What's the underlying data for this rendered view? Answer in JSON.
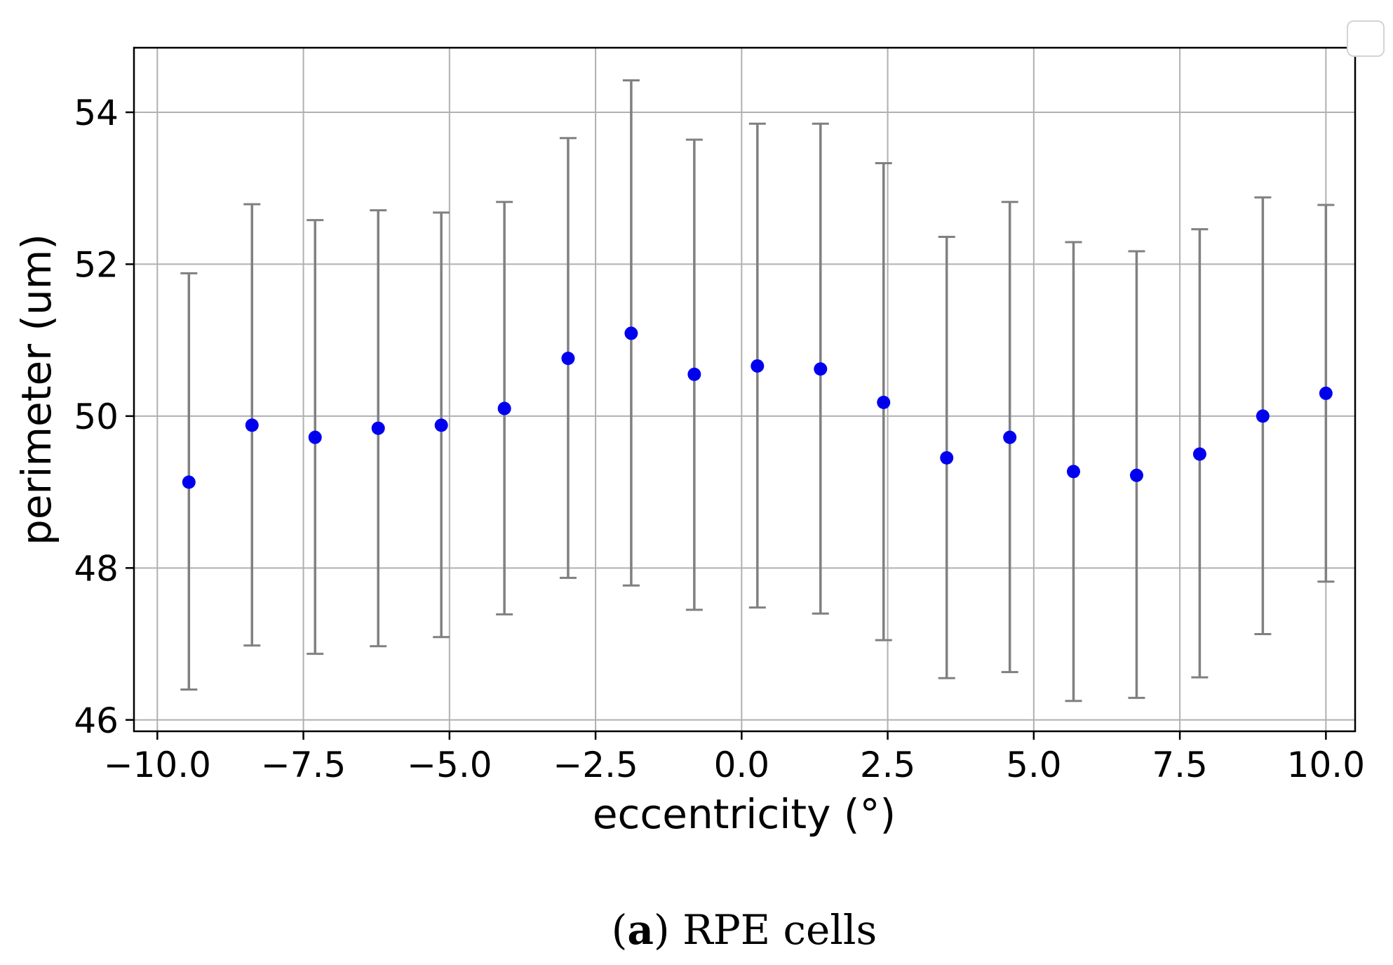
{
  "chart_data": {
    "type": "scatter",
    "title": "",
    "xlabel": "eccentricity (°)",
    "ylabel": "perimeter (um)",
    "xlim": [
      -10.4,
      10.5
    ],
    "ylim": [
      45.85,
      54.85
    ],
    "grid": true,
    "x_ticks": [
      -10.0,
      -7.5,
      -5.0,
      -2.5,
      0.0,
      2.5,
      5.0,
      7.5,
      10.0
    ],
    "x_tick_labels": [
      "−10.0",
      "−7.5",
      "−5.0",
      "−2.5",
      "0.0",
      "2.5",
      "5.0",
      "7.5",
      "10.0"
    ],
    "y_ticks": [
      46,
      48,
      50,
      52,
      54
    ],
    "y_tick_labels": [
      "46",
      "48",
      "50",
      "52",
      "54"
    ],
    "marker_color": "#0000ee",
    "errorbar_color": "#808080",
    "series": [
      {
        "x": [
          -9.46,
          -8.38,
          -7.3,
          -6.22,
          -5.14,
          -4.06,
          -2.97,
          -1.89,
          -0.81,
          0.27,
          1.35,
          2.43,
          3.51,
          4.59,
          5.68,
          6.76,
          7.84,
          8.92,
          10.0
        ],
        "y": [
          49.13,
          49.88,
          49.72,
          49.84,
          49.88,
          50.1,
          50.76,
          51.09,
          50.55,
          50.66,
          50.62,
          50.18,
          49.45,
          49.72,
          49.27,
          49.22,
          49.5,
          50.0,
          50.3
        ],
        "y_lower": [
          46.4,
          46.98,
          46.87,
          46.97,
          47.09,
          47.39,
          47.87,
          47.77,
          47.45,
          47.48,
          47.4,
          47.05,
          46.55,
          46.63,
          46.25,
          46.29,
          46.56,
          47.13,
          47.82
        ],
        "y_upper": [
          51.88,
          52.79,
          52.58,
          52.71,
          52.68,
          52.82,
          53.66,
          54.42,
          53.64,
          53.85,
          53.85,
          53.33,
          52.36,
          52.82,
          52.29,
          52.17,
          52.46,
          52.88,
          52.78
        ]
      }
    ]
  },
  "legend": {
    "text": ""
  },
  "caption": {
    "label": "a",
    "text": "RPE cells"
  }
}
